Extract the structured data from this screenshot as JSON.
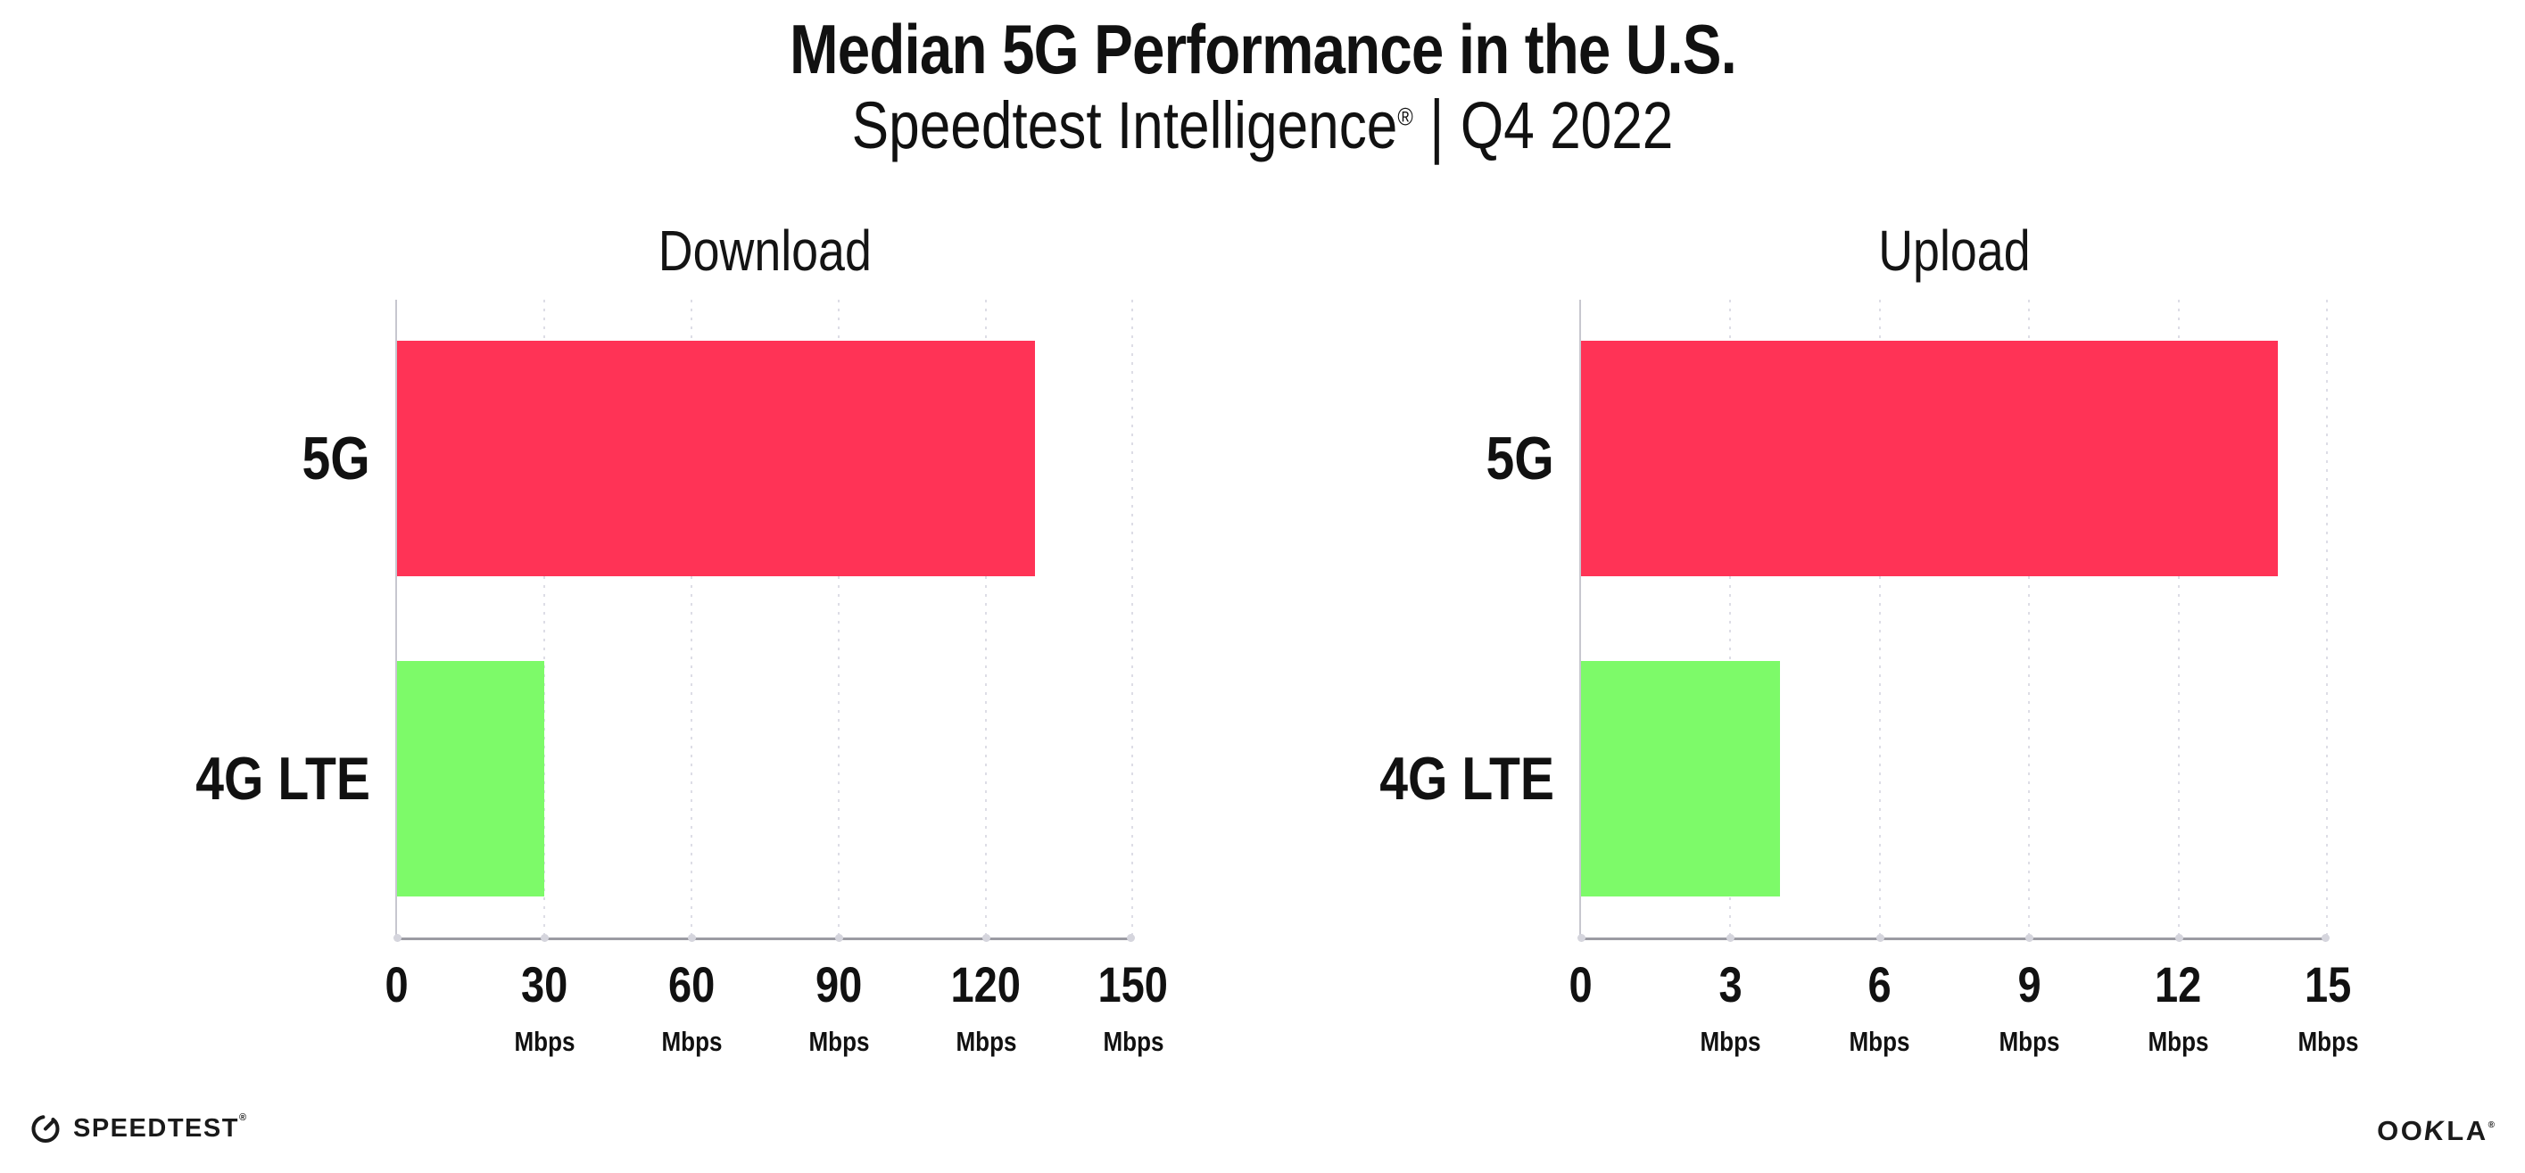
{
  "header": {
    "title": "Median 5G Performance in the U.S.",
    "subtitle": {
      "brand": "Speedtest Intelligence",
      "registered_mark": "®",
      "divider": "|",
      "period": "Q4 2022"
    }
  },
  "chart_data": [
    {
      "type": "bar",
      "orientation": "horizontal",
      "title": "Download",
      "categories": [
        "5G",
        "4G LTE"
      ],
      "values": [
        130,
        30
      ],
      "unit": "Mbps",
      "xlim": [
        0,
        150
      ],
      "xticks": [
        0,
        30,
        60,
        90,
        120,
        150
      ],
      "tick_unit_label": "Mbps",
      "unit_shown_on_zero": false,
      "bar_colors": [
        "#FF3356",
        "#7DFA69"
      ],
      "grid": "dotted-vertical-at-each-tick",
      "legend": "none",
      "xlabel": "",
      "ylabel": ""
    },
    {
      "type": "bar",
      "orientation": "horizontal",
      "title": "Upload",
      "categories": [
        "5G",
        "4G LTE"
      ],
      "values": [
        14,
        4
      ],
      "unit": "Mbps",
      "xlim": [
        0,
        15
      ],
      "xticks": [
        0,
        3,
        6,
        9,
        12,
        15
      ],
      "tick_unit_label": "Mbps",
      "unit_shown_on_zero": false,
      "bar_colors": [
        "#FF3356",
        "#7DFA69"
      ],
      "grid": "dotted-vertical-at-each-tick",
      "legend": "none",
      "xlabel": "",
      "ylabel": ""
    }
  ],
  "footer": {
    "speedtest_wordmark": "SPEEDTEST",
    "speedtest_registered_mark": "®",
    "ookla_wordmark_part1": "OO",
    "ookla_wordmark_k": "K",
    "ookla_wordmark_part2": "LA",
    "ookla_registered_mark": "®"
  },
  "colors": {
    "background": "#FFFFFF",
    "bar_5g": "#FF3356",
    "bar_4g_lte": "#7DFA69",
    "gridline": "#DDDDE6",
    "axis_bottom": "#9B9BA3",
    "axis_left": "#C7C7CF",
    "text": "#111111"
  }
}
